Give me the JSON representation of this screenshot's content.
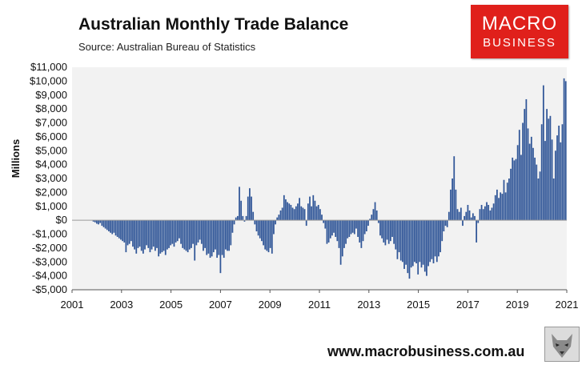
{
  "header": {
    "title": "Australian Monthly Trade Balance",
    "subtitle": "Source: Australian Bureau of Statistics"
  },
  "logo": {
    "line1": "MACRO",
    "line2": "BUSINESS"
  },
  "footer": {
    "url": "www.macrobusiness.com.au"
  },
  "colors": {
    "bar": "#2f5597",
    "plot_background": "#f2f2f2",
    "logo_red": "#e0201b"
  },
  "icons": {
    "wolf": "wolf-logo-icon"
  },
  "chart_data": {
    "type": "bar",
    "title": "Australian Monthly Trade Balance",
    "subtitle": "Source: Australian Bureau of Statistics",
    "xlabel": "",
    "ylabel": "Millions",
    "ylim": [
      -5000,
      11000
    ],
    "yticks": [
      -5000,
      -4000,
      -3000,
      -2000,
      -1000,
      0,
      1000,
      2000,
      3000,
      4000,
      5000,
      6000,
      7000,
      8000,
      9000,
      10000,
      11000
    ],
    "ytick_labels": [
      "-$5,000",
      "-$4,000",
      "-$3,000",
      "-$2,000",
      "-$1,000",
      "$0",
      "$1,000",
      "$2,000",
      "$3,000",
      "$4,000",
      "$5,000",
      "$6,000",
      "$7,000",
      "$8,000",
      "$9,000",
      "$10,000",
      "$11,000"
    ],
    "xlim": [
      2001,
      2021
    ],
    "xticks": [
      2001,
      2003,
      2005,
      2007,
      2009,
      2011,
      2013,
      2015,
      2017,
      2019,
      2021
    ],
    "xtick_labels": [
      "2001",
      "2003",
      "2005",
      "2007",
      "2009",
      "2011",
      "2013",
      "2015",
      "2017",
      "2019",
      "2021"
    ],
    "grid": false,
    "legend": "none",
    "series": [
      {
        "name": "",
        "start": "2001-01",
        "frequency": "monthly",
        "values": [
          0,
          0,
          0,
          0,
          0,
          0,
          0,
          0,
          0,
          0,
          0,
          0,
          -100,
          -150,
          -250,
          -300,
          -200,
          -400,
          -500,
          -600,
          -700,
          -800,
          -900,
          -1000,
          -900,
          -1100,
          -1200,
          -1300,
          -1400,
          -1500,
          -1600,
          -2300,
          -1800,
          -1700,
          -1500,
          -1900,
          -2100,
          -2400,
          -2000,
          -1900,
          -2200,
          -2400,
          -2100,
          -1800,
          -2000,
          -2300,
          -2100,
          -1900,
          -2200,
          -2000,
          -2600,
          -2400,
          -2300,
          -2200,
          -2500,
          -2100,
          -2000,
          -1800,
          -1700,
          -1900,
          -1600,
          -1500,
          -1300,
          -1700,
          -2000,
          -2100,
          -2200,
          -2300,
          -2100,
          -2000,
          -1700,
          -2900,
          -1800,
          -1600,
          -1400,
          -1700,
          -2200,
          -2000,
          -2500,
          -2400,
          -2700,
          -2600,
          -2300,
          -2100,
          -2700,
          -2500,
          -3800,
          -2500,
          -2700,
          -2100,
          -2200,
          -2200,
          -1800,
          -900,
          -300,
          200,
          300,
          2400,
          1400,
          300,
          -100,
          300,
          1700,
          2300,
          1700,
          600,
          -300,
          -800,
          -1100,
          -1300,
          -1500,
          -1800,
          -2100,
          -2200,
          -2300,
          -2000,
          -2400,
          -1000,
          -300,
          200,
          400,
          700,
          900,
          1800,
          1500,
          1300,
          1200,
          1100,
          900,
          800,
          1000,
          1200,
          1600,
          1000,
          900,
          800,
          -400,
          1200,
          1700,
          1000,
          1800,
          1400,
          1000,
          1100,
          800,
          400,
          -200,
          -600,
          -1700,
          -1600,
          -1300,
          -1100,
          -900,
          -1200,
          -1500,
          -2000,
          -3200,
          -2600,
          -2000,
          -1700,
          -1300,
          -1200,
          -1000,
          -900,
          -1000,
          -600,
          -1200,
          -1600,
          -2000,
          -1500,
          -1000,
          -800,
          -400,
          100,
          400,
          800,
          1300,
          700,
          -200,
          -1100,
          -1300,
          -1600,
          -1800,
          -1400,
          -1700,
          -1500,
          -1200,
          -1700,
          -2100,
          -2800,
          -2300,
          -2900,
          -3000,
          -3500,
          -3200,
          -3800,
          -4200,
          -3400,
          -3300,
          -3000,
          -3100,
          -3900,
          -3000,
          -3400,
          -3200,
          -3700,
          -4000,
          -3300,
          -3000,
          -2800,
          -3100,
          -2600,
          -3000,
          -2600,
          -2300,
          -1500,
          -800,
          -400,
          -500,
          600,
          2200,
          3000,
          4600,
          2200,
          800,
          600,
          900,
          -400,
          300,
          600,
          1100,
          700,
          200,
          500,
          300,
          -1600,
          -200,
          800,
          1100,
          800,
          1000,
          1300,
          1100,
          700,
          900,
          1200,
          1800,
          2200,
          1600,
          2000,
          1900,
          2900,
          2000,
          2700,
          3000,
          3700,
          4500,
          4300,
          4400,
          5400,
          6500,
          4700,
          7000,
          8000,
          8700,
          6600,
          5500,
          6000,
          5200,
          4500,
          4000,
          3000,
          3500,
          6900,
          9700,
          5700,
          8000,
          7300,
          7500,
          5800,
          3000,
          5000,
          6100,
          6800,
          5600,
          6900,
          10200,
          10000
        ]
      }
    ]
  }
}
